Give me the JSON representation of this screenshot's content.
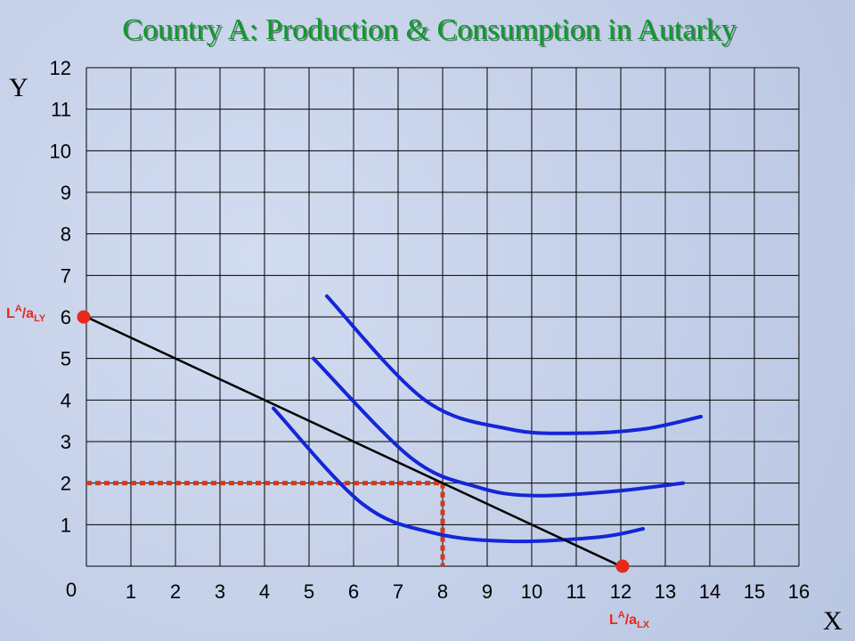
{
  "chart_data": {
    "type": "line",
    "title": "Country A: Production & Consumption in Autarky",
    "xlabel": "X",
    "ylabel": "Y",
    "xlim": [
      0,
      16
    ],
    "ylim": [
      0,
      12
    ],
    "x_ticks": [
      "0",
      "1",
      "2",
      "3",
      "4",
      "5",
      "6",
      "7",
      "8",
      "9",
      "10",
      "11",
      "12",
      "13",
      "14",
      "15",
      "16"
    ],
    "y_ticks": [
      "1",
      "2",
      "3",
      "4",
      "5",
      "6",
      "7",
      "8",
      "9",
      "10",
      "11",
      "12"
    ],
    "grid": true,
    "ppf": {
      "points": [
        [
          0,
          6
        ],
        [
          12,
          0
        ]
      ],
      "y_intercept_label": {
        "main": "L",
        "sup": "A",
        "mid": "/a",
        "sub": "LY"
      },
      "x_intercept_label": {
        "main": "L",
        "sup": "A",
        "mid": "/a",
        "sub": "LX"
      },
      "color": "#000000"
    },
    "intercept_marker_color": "#e8281b",
    "indifference_curves": [
      {
        "points": [
          [
            4.2,
            3.8
          ],
          [
            6.2,
            1.5
          ],
          [
            7.8,
            0.8
          ],
          [
            9.5,
            0.6
          ],
          [
            11.5,
            0.7
          ],
          [
            12.5,
            0.9
          ]
        ]
      },
      {
        "points": [
          [
            5.1,
            5.0
          ],
          [
            7.3,
            2.6
          ],
          [
            8.8,
            1.9
          ],
          [
            10,
            1.7
          ],
          [
            11.8,
            1.8
          ],
          [
            13.4,
            2.0
          ]
        ]
      },
      {
        "points": [
          [
            5.4,
            6.5
          ],
          [
            7.6,
            4.0
          ],
          [
            9.5,
            3.3
          ],
          [
            11,
            3.2
          ],
          [
            12.5,
            3.3
          ],
          [
            13.8,
            3.6
          ]
        ]
      }
    ],
    "curve_color": "#1426d6",
    "autarky_point": {
      "x": 8,
      "y": 2
    },
    "dotted_color": "#d4391c"
  }
}
